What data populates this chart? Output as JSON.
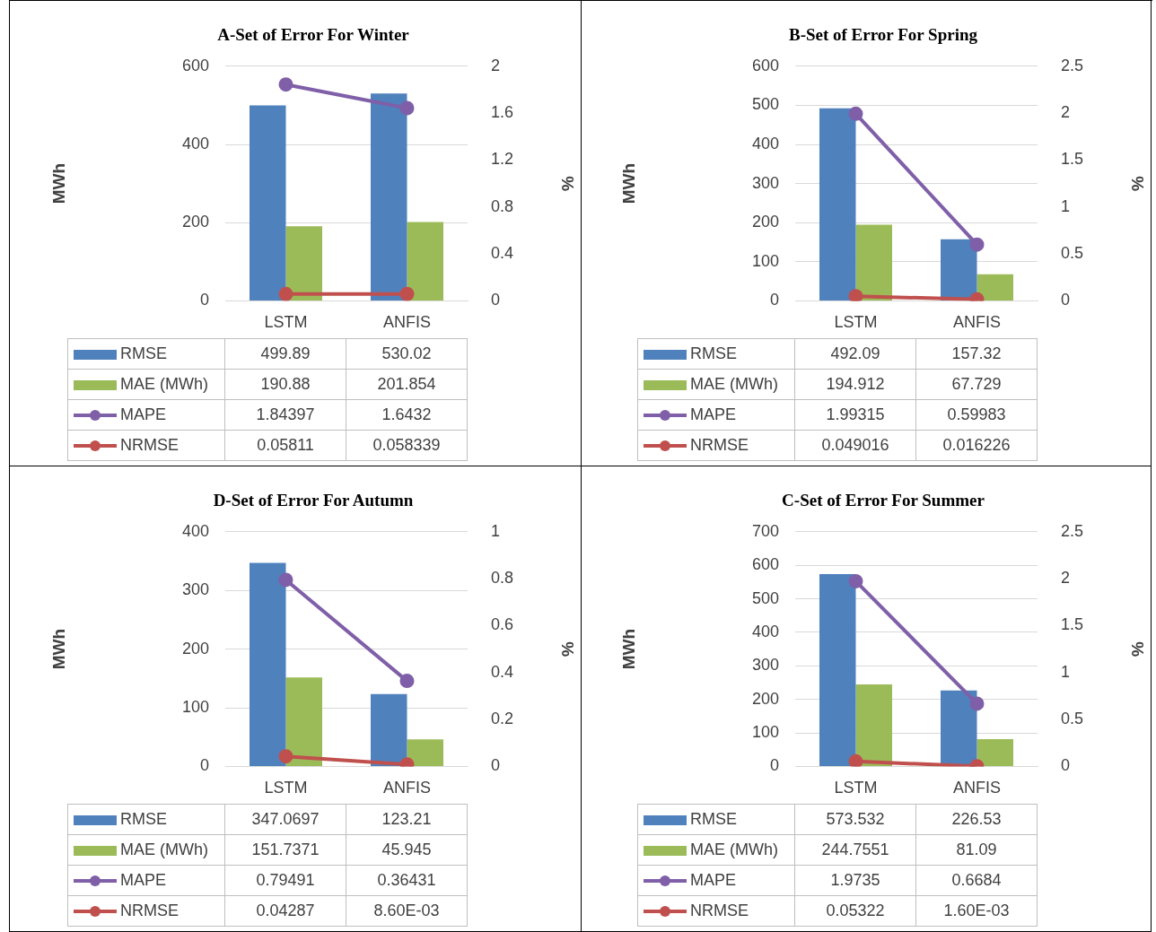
{
  "chart_data": [
    {
      "type": "bar",
      "title": "A-Set of Error For Winter",
      "categories": [
        "LSTM",
        "ANFIS"
      ],
      "ylabel": "MWh",
      "y2label": "%",
      "ylim": [
        0,
        600
      ],
      "yticks": [
        0,
        200,
        400,
        600
      ],
      "y2lim": [
        0,
        2
      ],
      "y2ticks": [
        0,
        0.4,
        0.8,
        1.2,
        1.6,
        2
      ],
      "grid": "y",
      "legend": "bottom",
      "series": [
        {
          "name": "RMSE",
          "color": "#4f81bd",
          "values": [
            499.89,
            530.02
          ],
          "value_labels": [
            "499.89",
            "530.02"
          ]
        },
        {
          "name": "MAE (MWh)",
          "color": "#9bbb59",
          "values": [
            190.88,
            201.854
          ],
          "value_labels": [
            "190.88",
            "201.854"
          ]
        },
        {
          "name": "MAPE",
          "type": "line",
          "axis": "y2",
          "marker": "circle",
          "color": "#7f5fa8",
          "values": [
            1.84397,
            1.6432
          ],
          "value_labels": [
            "1.84397",
            "1.6432"
          ]
        },
        {
          "name": "NRMSE",
          "type": "line",
          "axis": "y2",
          "marker": "circle",
          "color": "#c0504d",
          "values": [
            0.05811,
            0.058339
          ],
          "value_labels": [
            "0.05811",
            "0.058339"
          ]
        }
      ]
    },
    {
      "type": "bar",
      "title": "B-Set of Error For Spring",
      "categories": [
        "LSTM",
        "ANFIS"
      ],
      "ylabel": "MWh",
      "y2label": "%",
      "ylim": [
        0,
        600
      ],
      "yticks": [
        0,
        100,
        200,
        300,
        400,
        500,
        600
      ],
      "y2lim": [
        0,
        2.5
      ],
      "y2ticks": [
        0,
        0.5,
        1,
        1.5,
        2,
        2.5
      ],
      "grid": "y",
      "legend": "bottom",
      "series": [
        {
          "name": "RMSE",
          "color": "#4f81bd",
          "values": [
            492.09,
            157.32
          ],
          "value_labels": [
            "492.09",
            "157.32"
          ]
        },
        {
          "name": "MAE (MWh)",
          "color": "#9bbb59",
          "values": [
            194.912,
            67.729
          ],
          "value_labels": [
            "194.912",
            "67.729"
          ]
        },
        {
          "name": "MAPE",
          "type": "line",
          "axis": "y2",
          "marker": "circle",
          "color": "#7f5fa8",
          "values": [
            1.99315,
            0.59983
          ],
          "value_labels": [
            "1.99315",
            "0.59983"
          ]
        },
        {
          "name": "NRMSE",
          "type": "line",
          "axis": "y2",
          "marker": "circle",
          "color": "#c0504d",
          "values": [
            0.049016,
            0.016226
          ],
          "value_labels": [
            "0.049016",
            "0.016226"
          ]
        }
      ]
    },
    {
      "type": "bar",
      "title": "D-Set of Error For Autumn",
      "categories": [
        "LSTM",
        "ANFIS"
      ],
      "ylabel": "MWh",
      "y2label": "%",
      "ylim": [
        0,
        400
      ],
      "yticks": [
        0,
        100,
        200,
        300,
        400
      ],
      "y2lim": [
        0,
        1
      ],
      "y2ticks": [
        0,
        0.2,
        0.4,
        0.6,
        0.8,
        1
      ],
      "grid": "y",
      "legend": "bottom",
      "series": [
        {
          "name": "RMSE",
          "color": "#4f81bd",
          "values": [
            347.0697,
            123.21
          ],
          "value_labels": [
            "347.0697",
            "123.21"
          ]
        },
        {
          "name": "MAE (MWh)",
          "color": "#9bbb59",
          "values": [
            151.7371,
            45.945
          ],
          "value_labels": [
            "151.7371",
            "45.945"
          ]
        },
        {
          "name": "MAPE",
          "type": "line",
          "axis": "y2",
          "marker": "circle",
          "color": "#7f5fa8",
          "values": [
            0.79491,
            0.36431
          ],
          "value_labels": [
            "0.79491",
            "0.36431"
          ]
        },
        {
          "name": "NRMSE",
          "type": "line",
          "axis": "y2",
          "marker": "circle",
          "color": "#c0504d",
          "values": [
            0.04287,
            0.0086
          ],
          "value_labels": [
            "0.04287",
            "8.60E-03"
          ]
        }
      ]
    },
    {
      "type": "bar",
      "title": "C-Set of Error For Summer",
      "categories": [
        "LSTM",
        "ANFIS"
      ],
      "ylabel": "MWh",
      "y2label": "%",
      "ylim": [
        0,
        700
      ],
      "yticks": [
        0,
        100,
        200,
        300,
        400,
        500,
        600,
        700
      ],
      "y2lim": [
        0,
        2.5
      ],
      "y2ticks": [
        0,
        0.5,
        1,
        1.5,
        2,
        2.5
      ],
      "grid": "y",
      "legend": "bottom",
      "series": [
        {
          "name": "RMSE",
          "color": "#4f81bd",
          "values": [
            573.532,
            226.53
          ],
          "value_labels": [
            "573.532",
            "226.53"
          ]
        },
        {
          "name": "MAE (MWh)",
          "color": "#9bbb59",
          "values": [
            244.7551,
            81.09
          ],
          "value_labels": [
            "244.7551",
            "81.09"
          ]
        },
        {
          "name": "MAPE",
          "type": "line",
          "axis": "y2",
          "marker": "circle",
          "color": "#7f5fa8",
          "values": [
            1.9735,
            0.6684
          ],
          "value_labels": [
            "1.9735",
            "0.6684"
          ]
        },
        {
          "name": "NRMSE",
          "type": "line",
          "axis": "y2",
          "marker": "circle",
          "color": "#c0504d",
          "values": [
            0.05322,
            0.0016
          ],
          "value_labels": [
            "0.05322",
            "1.60E-03"
          ]
        }
      ]
    }
  ]
}
